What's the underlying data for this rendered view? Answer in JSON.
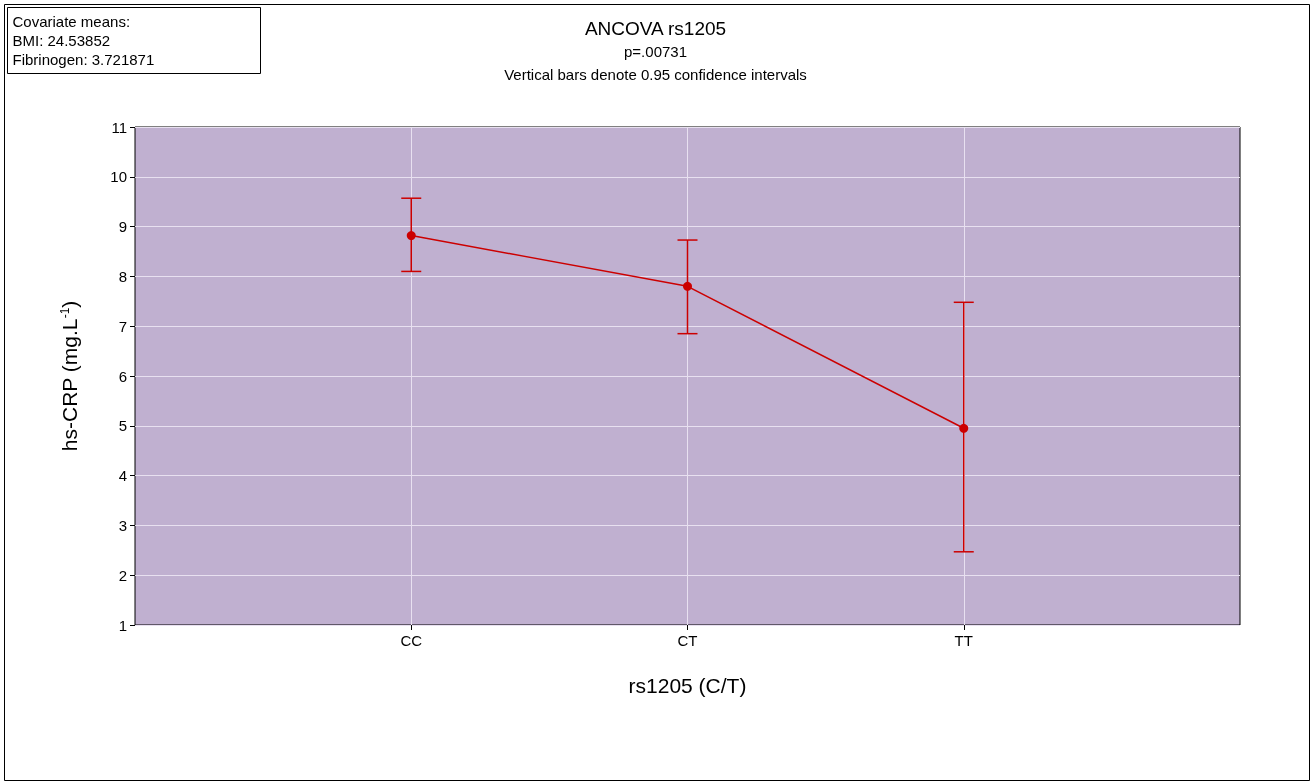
{
  "chart_data": {
    "type": "line",
    "title": "ANCOVA rs1205",
    "subtitle": "p=.00731",
    "annotations": [
      "Vertical bars denote 0.95 confidence intervals",
      "Covariate means:\nBMI: 24.53852\nFibrinogen: 3.721871"
    ],
    "xlabel": "rs1205 (C/T)",
    "ylabel": "hs-CRP (mg.L$^{-1}$)",
    "categories": [
      "CC",
      "CT",
      "TT"
    ],
    "series": [
      {
        "color": "#cc0000",
        "values": [
          8.82,
          7.8,
          4.95
        ],
        "errors": [
          [
            8.1,
            9.57
          ],
          [
            6.85,
            8.73
          ],
          [
            2.47,
            7.48
          ]
        ]
      }
    ],
    "ylim": [
      1,
      11
    ],
    "yticks": [
      1,
      2,
      3,
      4,
      5,
      6,
      7,
      8,
      9,
      10,
      11
    ],
    "grid": true,
    "marker": "circle",
    "line_style": "solid"
  }
}
